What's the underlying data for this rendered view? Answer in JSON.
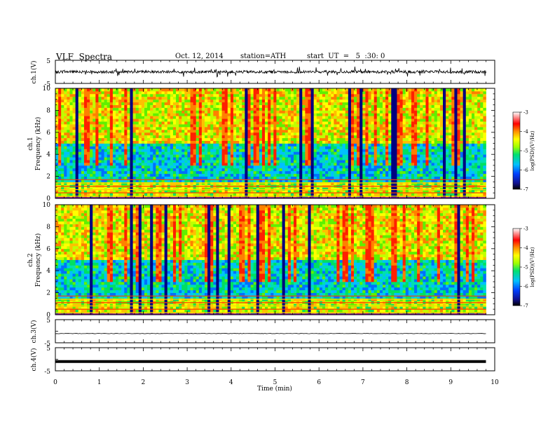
{
  "header": {
    "title": "VLF  Spectra",
    "date": "Oct. 12, 2014",
    "station": "station=ATH",
    "start": "start  UT  =   5  :30: 0"
  },
  "chart_data": [
    {
      "type": "line",
      "panel": "ch1",
      "ylabel": "ch.1(V)",
      "ylim": [
        -5,
        5
      ],
      "ytick_labels": [
        "5",
        "-5"
      ],
      "description_values": "noisy waveform centred near 0 V, excursions to about ±2 V"
    },
    {
      "type": "heatmap",
      "panel": "ch1-spectrogram",
      "ylabel_top": "ch.1",
      "ylabel": "Frequency (kHz)",
      "ylim": [
        0,
        10
      ],
      "ytick_labels": [
        "0",
        "2",
        "4",
        "6",
        "8",
        "10"
      ],
      "colorbar": {
        "label": "log(PSD)(V²/Hz)",
        "range": [
          -7,
          -3
        ],
        "tick_labels": [
          "-3",
          "-4",
          "-5",
          "-6",
          "-7"
        ],
        "colors": [
          "#000000",
          "#1010c8",
          "#0070ff",
          "#00d0ff",
          "#00e070",
          "#a0ff00",
          "#ffff00",
          "#ff9000",
          "#ff0000",
          "#ffffff"
        ]
      }
    },
    {
      "type": "heatmap",
      "panel": "ch2-spectrogram",
      "ylabel_top": "ch.2",
      "ylabel": "Frequency (kHz)",
      "ylim": [
        0,
        10
      ],
      "ytick_labels": [
        "0",
        "2",
        "4",
        "6",
        "8",
        "10"
      ],
      "colorbar": {
        "label": "log(PSD)(V²/Hz)",
        "range": [
          -7,
          -3
        ],
        "tick_labels": [
          "-3",
          "-4",
          "-5",
          "-6",
          "-7"
        ]
      }
    },
    {
      "type": "line",
      "panel": "ch3",
      "ylabel": "ch.3(V)",
      "ylim": [
        -5,
        5
      ],
      "ytick_labels": [
        "5",
        "-5"
      ],
      "value_level": -1
    },
    {
      "type": "line",
      "panel": "ch4",
      "ylabel": "ch.4(V)",
      "ylim": [
        -5,
        5
      ],
      "ytick_labels": [
        "5",
        "-5"
      ],
      "value_level": -1
    }
  ],
  "xaxis": {
    "label": "Time  (min)",
    "xlim": [
      0,
      10
    ],
    "data_end": 9.8,
    "tick_labels": [
      "0",
      "1",
      "2",
      "3",
      "4",
      "5",
      "6",
      "7",
      "8",
      "9",
      "10"
    ]
  }
}
